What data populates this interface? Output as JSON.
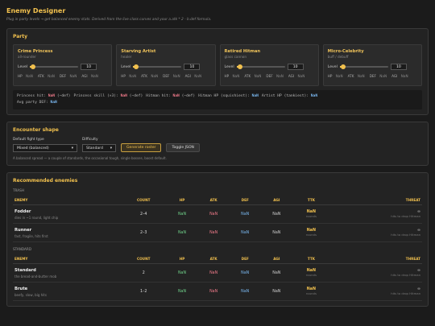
{
  "header": {
    "title": "Enemy Designer",
    "subtitle": "Plug in party levels → get balanced enemy stats. Derived from the live class curves and your a.atk * 2 - b.def formula."
  },
  "party": {
    "title": "Party",
    "members": [
      {
        "name": "Crime Princess",
        "role": "all-rounder",
        "level_label": "Level",
        "level": 10,
        "stats": [
          {
            "label": "HP",
            "value": "NaN"
          },
          {
            "label": "ATK",
            "value": "NaN"
          },
          {
            "label": "DEF",
            "value": "NaN"
          },
          {
            "label": "AGI",
            "value": "NaN"
          }
        ]
      },
      {
        "name": "Starving Artist",
        "role": "healer",
        "level_label": "Level",
        "level": 10,
        "stats": [
          {
            "label": "HP",
            "value": "NaN"
          },
          {
            "label": "ATK",
            "value": "NaN"
          },
          {
            "label": "DEF",
            "value": "NaN"
          },
          {
            "label": "AGI",
            "value": "NaN"
          }
        ]
      },
      {
        "name": "Retired Hitman",
        "role": "glass cannon",
        "level_label": "Level",
        "level": 10,
        "stats": [
          {
            "label": "HP",
            "value": "NaN"
          },
          {
            "label": "ATK",
            "value": "NaN"
          },
          {
            "label": "DEF",
            "value": "NaN"
          },
          {
            "label": "AGI",
            "value": "NaN"
          }
        ]
      },
      {
        "name": "Micro-Celebrity",
        "role": "buff / debuff",
        "level_label": "Level",
        "level": 10,
        "stats": [
          {
            "label": "HP",
            "value": "NaN"
          },
          {
            "label": "ATK",
            "value": "NaN"
          },
          {
            "label": "DEF",
            "value": "NaN"
          },
          {
            "label": "AGI",
            "value": "NaN"
          }
        ]
      }
    ],
    "summary": [
      {
        "label": "Princess hit:",
        "value": "NaN",
        "note": "(−def)"
      },
      {
        "label": "Princess skill (×3):",
        "value": "NaN",
        "note": "(−def)"
      },
      {
        "label": "Hitman hit:",
        "value": "NaN",
        "note": "(−def)"
      },
      {
        "label": "Hitman HP (squishiest):",
        "value": "NaN"
      },
      {
        "label": "Artist HP (tankiest):",
        "value": "NaN"
      },
      {
        "label": "Avg party DEF:",
        "value": "NaN"
      }
    ]
  },
  "encounter": {
    "title": "Encounter shape",
    "fight_type_label": "Default fight type",
    "fight_type": "Mixed (balanced)",
    "difficulty_label": "Difficulty",
    "difficulty": "Standard",
    "generate_button": "Generate roster",
    "json_button": "Toggle JSON",
    "note": "A balanced spread — a couple of standards, the occasional tough, single bosses, boost default."
  },
  "recommended": {
    "title": "Recommended enemies",
    "groups": [
      {
        "label": "TRASH",
        "columns": [
          "ENEMY",
          "COUNT",
          "HP",
          "ATK",
          "DEF",
          "AGI",
          "TTK",
          "THREAT"
        ],
        "rows": [
          {
            "name": "Fodder",
            "desc": "dies in ~1 round, light chip",
            "count": "2–4",
            "hp": "NaN",
            "atk": "NaN",
            "def": "NaN",
            "agi": "NaN",
            "ttk": "NaN",
            "ttk_unit": "rounds",
            "threat": "∞",
            "threat_note": "hits to drop Hitman"
          },
          {
            "name": "Runner",
            "desc": "fast, fragile, hits first",
            "count": "2–3",
            "hp": "NaN",
            "atk": "NaN",
            "def": "NaN",
            "agi": "NaN",
            "ttk": "NaN",
            "ttk_unit": "rounds",
            "threat": "∞",
            "threat_note": "hits to drop Hitman"
          }
        ]
      },
      {
        "label": "STANDARD",
        "columns": [
          "ENEMY",
          "COUNT",
          "HP",
          "ATK",
          "DEF",
          "AGI",
          "TTK",
          "THREAT"
        ],
        "rows": [
          {
            "name": "Standard",
            "desc": "the bread-and-butter mob",
            "count": "2",
            "hp": "NaN",
            "atk": "NaN",
            "def": "NaN",
            "agi": "NaN",
            "ttk": "NaN",
            "ttk_unit": "rounds",
            "threat": "∞",
            "threat_note": "hits to drop Hitman"
          },
          {
            "name": "Brute",
            "desc": "beefy, slow, big hits",
            "count": "1–2",
            "hp": "NaN",
            "atk": "NaN",
            "def": "NaN",
            "agi": "NaN",
            "ttk": "NaN",
            "ttk_unit": "rounds",
            "threat": "∞",
            "threat_note": "hits to drop Hitman"
          }
        ]
      }
    ]
  }
}
